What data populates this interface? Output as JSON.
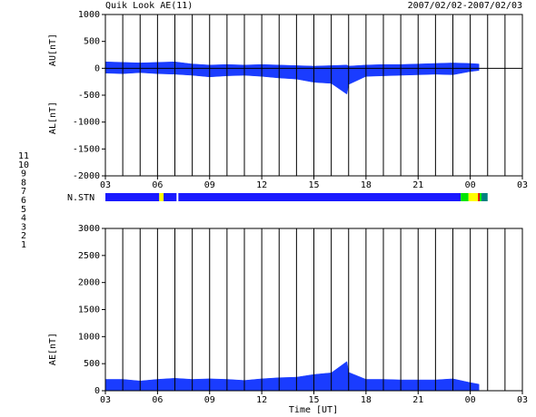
{
  "header": {
    "title": "Quik Look AE(11)",
    "date": "2007/02/02-2007/02/03"
  },
  "x_title": "Time [UT]",
  "station_legend": {
    "counts": [
      11,
      10,
      9,
      8,
      7,
      6,
      5,
      4,
      3,
      2,
      1
    ],
    "colors": [
      "#00e5e5",
      "#e500e5",
      "#1a1aff",
      "#ffff00",
      "#00e500",
      "#e50000",
      "#ffffff",
      "#b0b0b0",
      "#008080",
      "#8000a0",
      "#1a1aff"
    ]
  },
  "chart_data": [
    {
      "type": "range_area",
      "ylabel_upper": "AU[nT]",
      "ylabel_lower": "AL[nT]",
      "xlim": [
        3,
        27
      ],
      "xticks": [
        {
          "value": 3,
          "label": "03"
        },
        {
          "value": 6,
          "label": "06"
        },
        {
          "value": 9,
          "label": "09"
        },
        12,
        15,
        18,
        21,
        {
          "value": 24,
          "label": "00"
        },
        {
          "value": 27,
          "label": "03"
        }
      ],
      "ylim": [
        -2000,
        1000
      ],
      "yticks": [
        1000,
        500,
        0,
        -500,
        -1000,
        -1500,
        -2000
      ],
      "x": [
        3,
        4,
        5,
        6,
        7,
        8,
        9,
        10,
        11,
        12,
        13,
        14,
        15,
        16,
        16.9,
        17,
        18,
        19,
        20,
        21,
        22,
        23,
        24,
        24.5
      ],
      "series": [
        {
          "color": "#1a3cff",
          "values": [
            120,
            110,
            100,
            110,
            120,
            80,
            60,
            70,
            60,
            70,
            60,
            50,
            40,
            50,
            60,
            40,
            60,
            70,
            70,
            80,
            90,
            100,
            90,
            80
          ]
        },
        {
          "color": "#1a3cff",
          "values": [
            -90,
            -100,
            -80,
            -100,
            -110,
            -130,
            -160,
            -140,
            -130,
            -150,
            -180,
            -200,
            -260,
            -280,
            -480,
            -300,
            -150,
            -140,
            -130,
            -120,
            -110,
            -120,
            -60,
            -40
          ]
        }
      ]
    },
    {
      "type": "status_bar",
      "label": "N.STN",
      "segments": [
        [
          3,
          6.1,
          9
        ],
        [
          6.1,
          6.35,
          8
        ],
        [
          6.35,
          7.1,
          9
        ],
        [
          7.1,
          7.2,
          5
        ],
        [
          7.2,
          23.45,
          9
        ],
        [
          23.45,
          23.9,
          7
        ],
        [
          23.9,
          24.45,
          8
        ],
        [
          24.45,
          24.55,
          6
        ],
        [
          24.55,
          24.65,
          7
        ],
        [
          24.65,
          25.0,
          3
        ]
      ]
    },
    {
      "type": "area",
      "ylabel": "AE[nT]",
      "xlim": [
        3,
        27
      ],
      "xticks": [
        {
          "value": 3,
          "label": "03"
        },
        {
          "value": 6,
          "label": "06"
        },
        {
          "value": 9,
          "label": "09"
        },
        12,
        15,
        18,
        21,
        {
          "value": 24,
          "label": "00"
        },
        {
          "value": 27,
          "label": "03"
        }
      ],
      "ylim": [
        0,
        3000
      ],
      "yticks": [
        3000,
        2500,
        2000,
        1500,
        1000,
        500,
        0
      ],
      "x": [
        3,
        4,
        5,
        6,
        7,
        8,
        9,
        10,
        11,
        12,
        13,
        14,
        15,
        16,
        16.9,
        17,
        18,
        19,
        20,
        21,
        22,
        23,
        24,
        24.5
      ],
      "series": [
        {
          "color": "#1a3cff",
          "values": [
            210,
            210,
            180,
            210,
            230,
            210,
            220,
            210,
            190,
            220,
            240,
            250,
            300,
            330,
            540,
            340,
            210,
            210,
            200,
            200,
            200,
            220,
            150,
            120
          ]
        }
      ]
    }
  ]
}
